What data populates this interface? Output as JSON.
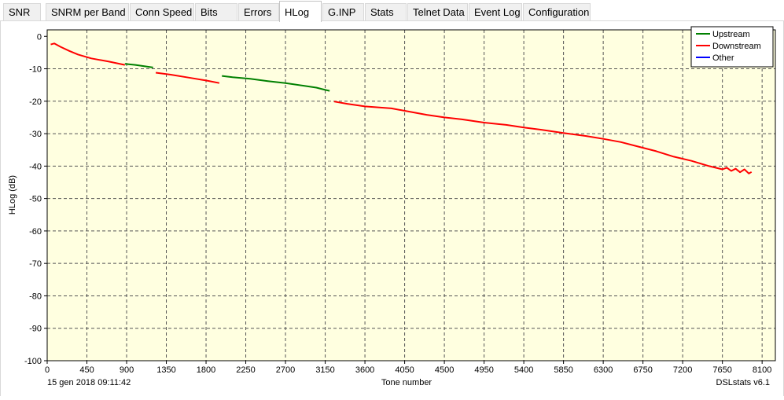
{
  "tabs": [
    {
      "label": "SNR",
      "active": false
    },
    {
      "label": "SNRM per Band",
      "active": false
    },
    {
      "label": "Conn Speed",
      "active": false
    },
    {
      "label": "Bits",
      "active": false
    },
    {
      "label": "Errors",
      "active": false
    },
    {
      "label": "HLog",
      "active": true
    },
    {
      "label": "G.INP",
      "active": false
    },
    {
      "label": "Stats",
      "active": false
    },
    {
      "label": "Telnet Data",
      "active": false
    },
    {
      "label": "Event Log",
      "active": false
    },
    {
      "label": "Configuration",
      "active": false
    }
  ],
  "footer": {
    "timestamp": "15 gen 2018 09:11:42",
    "version": "DSLstats v6.1"
  },
  "colors": {
    "plot_background": "#ffffe0",
    "grid": "#555555",
    "upstream": "#008000",
    "downstream": "#ff0000",
    "other": "#0000ff"
  },
  "chart_data": {
    "type": "line",
    "xlabel": "Tone number",
    "ylabel": "HLog (dB)",
    "xlim": [
      0,
      8250
    ],
    "ylim": [
      -100,
      2
    ],
    "xticks": [
      0,
      450,
      900,
      1350,
      1800,
      2250,
      2700,
      3150,
      3600,
      4050,
      4500,
      4950,
      5400,
      5850,
      6300,
      6750,
      7200,
      7650,
      8100
    ],
    "yticks": [
      0,
      -10,
      -20,
      -30,
      -40,
      -50,
      -60,
      -70,
      -80,
      -90,
      -100
    ],
    "grid": true,
    "legend_position": "top-right",
    "series": [
      {
        "name": "Upstream",
        "color": "#008000",
        "segments": [
          [
            [
              880,
              -8.5
            ],
            [
              1000,
              -8.8
            ],
            [
              1100,
              -9.2
            ],
            [
              1200,
              -9.6
            ]
          ],
          [
            [
              1980,
              -12.2
            ],
            [
              2100,
              -12.6
            ],
            [
              2300,
              -13.1
            ],
            [
              2500,
              -13.8
            ],
            [
              2700,
              -14.4
            ],
            [
              2900,
              -15.2
            ],
            [
              3050,
              -15.8
            ],
            [
              3150,
              -16.5
            ],
            [
              3200,
              -16.8
            ]
          ]
        ]
      },
      {
        "name": "Downstream",
        "color": "#ff0000",
        "segments": [
          [
            [
              40,
              -2.5
            ],
            [
              80,
              -2.2
            ],
            [
              150,
              -3.2
            ],
            [
              250,
              -4.5
            ],
            [
              350,
              -5.6
            ],
            [
              500,
              -6.8
            ],
            [
              700,
              -7.8
            ],
            [
              880,
              -8.8
            ]
          ],
          [
            [
              1230,
              -11.2
            ],
            [
              1400,
              -11.8
            ],
            [
              1600,
              -12.7
            ],
            [
              1800,
              -13.6
            ],
            [
              1950,
              -14.4
            ]
          ],
          [
            [
              3250,
              -20.1
            ],
            [
              3400,
              -20.8
            ],
            [
              3600,
              -21.6
            ],
            [
              3900,
              -22.2
            ],
            [
              4100,
              -23.2
            ],
            [
              4300,
              -24.2
            ],
            [
              4500,
              -25.0
            ],
            [
              4700,
              -25.6
            ],
            [
              4950,
              -26.6
            ],
            [
              5200,
              -27.3
            ],
            [
              5400,
              -28.1
            ],
            [
              5600,
              -28.8
            ],
            [
              5850,
              -29.8
            ],
            [
              6100,
              -30.7
            ],
            [
              6300,
              -31.6
            ],
            [
              6500,
              -32.6
            ],
            [
              6700,
              -34.0
            ],
            [
              6900,
              -35.4
            ],
            [
              7100,
              -37.1
            ],
            [
              7300,
              -38.4
            ],
            [
              7500,
              -40.0
            ],
            [
              7650,
              -41.0
            ],
            [
              7700,
              -40.5
            ],
            [
              7750,
              -41.5
            ],
            [
              7800,
              -40.8
            ],
            [
              7850,
              -41.9
            ],
            [
              7900,
              -41.0
            ],
            [
              7950,
              -42.3
            ],
            [
              7980,
              -41.8
            ]
          ]
        ]
      },
      {
        "name": "Other",
        "color": "#0000ff",
        "segments": []
      }
    ]
  }
}
